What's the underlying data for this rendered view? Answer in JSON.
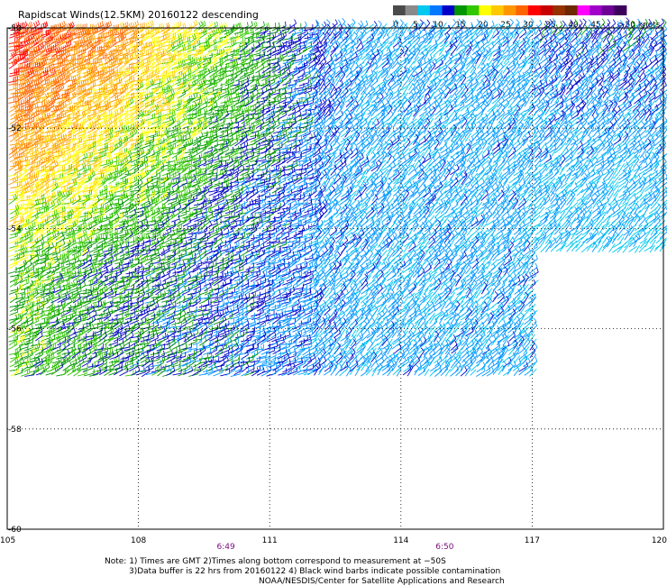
{
  "title": "Rapidscat Winds(12.5KM) 20160122 descending",
  "colorbar": {
    "labels": [
      "0",
      "5",
      "10",
      "15",
      "20",
      "25",
      "30",
      "35",
      "40",
      "45",
      ">50 knots"
    ],
    "colors": [
      "#4a4a4a",
      "#8a8a8a",
      "#00c8f0",
      "#0078ff",
      "#0000c8",
      "#009600",
      "#32c800",
      "#ffff00",
      "#ffc800",
      "#ff9600",
      "#ff6400",
      "#ff0000",
      "#c80000",
      "#963200",
      "#6e2800",
      "#ff00ff",
      "#a000c8",
      "#6e0096",
      "#3c005a"
    ]
  },
  "map": {
    "x_ticks": [
      "105",
      "108",
      "111",
      "114",
      "117",
      "120"
    ],
    "y_ticks": [
      "-50",
      "-52",
      "-54",
      "-56",
      "-58",
      "-60"
    ],
    "x_range": [
      105,
      120
    ],
    "y_range": [
      -50,
      -60
    ],
    "grid": true,
    "swath": {
      "lat_range": [
        -50,
        -57
      ],
      "lon_range": [
        105,
        117
      ],
      "east_extension_lat_range": [
        -50,
        -54.5
      ],
      "east_extension_lon_range": [
        117,
        120
      ]
    },
    "time_labels": [
      {
        "text": "6:49",
        "lon": 110
      },
      {
        "text": "6:50",
        "lon": 115
      }
    ]
  },
  "notes": {
    "line1": "Note:  1) Times are GMT 2)Times along bottom correspond to measurement at −50S",
    "line2": "3)Data buffer is 22 hrs from 20160122 4) Black wind barbs indicate possible contamination",
    "line3": "NOAA/NESDIS/Center for Satellite Applications and Research"
  }
}
